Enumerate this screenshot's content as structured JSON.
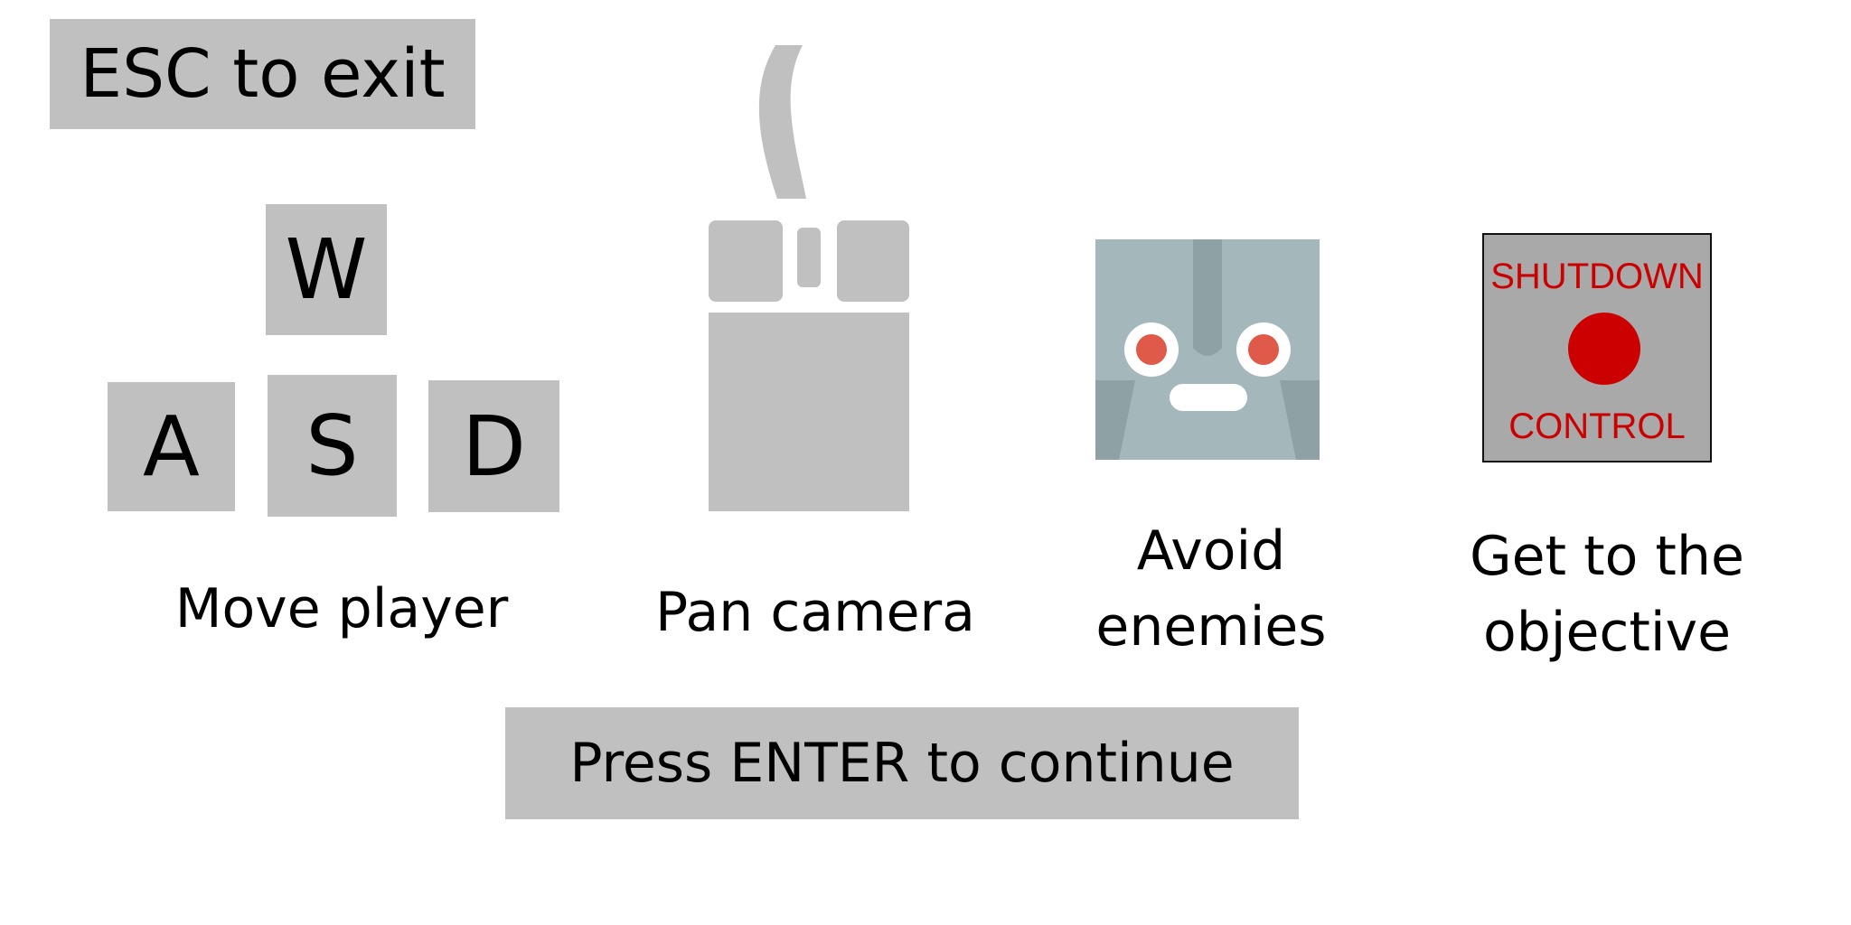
{
  "esc_hint": "ESC to exit",
  "keys": {
    "w": "W",
    "a": "A",
    "s": "S",
    "d": "D"
  },
  "captions": {
    "move": "Move player",
    "pan": "Pan camera",
    "avoid_line1": "Avoid",
    "avoid_line2": "enemies",
    "goal_line1": "Get to the",
    "goal_line2": "objective"
  },
  "objective_sign": {
    "top": "SHUTDOWN",
    "bottom": "CONTROL"
  },
  "continue_prompt": "Press ENTER to continue",
  "colors": {
    "key_gray": "#c0c0c0",
    "enemy_body": "#a4b8bc",
    "enemy_eye": "#e05a4a",
    "objective_red": "#cc0000"
  },
  "icons": {
    "mouse": "mouse-icon",
    "enemy": "robot-enemy-icon",
    "objective": "shutdown-control-icon"
  }
}
